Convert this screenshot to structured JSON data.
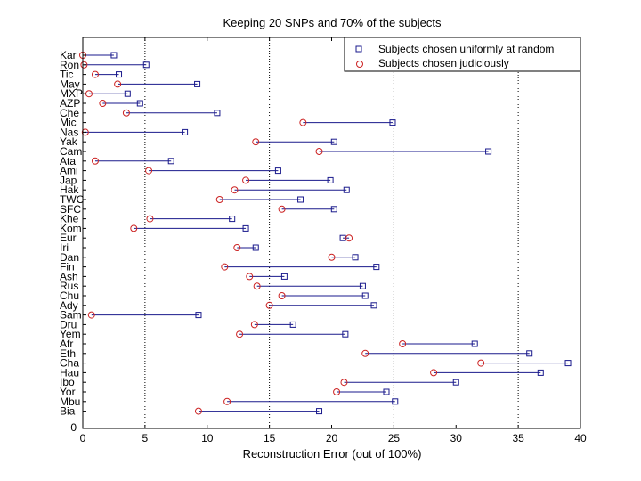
{
  "chart_data": {
    "type": "dumbbell",
    "title": "Keeping 20 SNPs and 70% of the subjects",
    "xlabel": "Reconstruction Error (out of 100%)",
    "ylabel": "",
    "xlim": [
      0,
      40
    ],
    "xticks": [
      "0",
      "5",
      "10",
      "15",
      "20",
      "25",
      "30",
      "35",
      "40"
    ],
    "y_zero_label": "0",
    "reference_lines": [
      5,
      15,
      25,
      35
    ],
    "categories": [
      "Kar",
      "Ron",
      "Tic",
      "May",
      "MXP",
      "AZP",
      "Che",
      "Mic",
      "Nas",
      "Yak",
      "Cam",
      "Ata",
      "Ami",
      "Jap",
      "Hak",
      "TWC",
      "SFC",
      "Khe",
      "Kom",
      "Eur",
      "Iri",
      "Dan",
      "Fin",
      "Ash",
      "Rus",
      "Chu",
      "Ady",
      "Sam",
      "Dru",
      "Yem",
      "Afr",
      "Eth",
      "Cha",
      "Hau",
      "Ibo",
      "Yor",
      "Mbu",
      "Bia"
    ],
    "series": [
      {
        "name": "Subjects chosen uniformly at random",
        "marker": "square",
        "color": "#1a1a8c",
        "values": [
          2.5,
          5.1,
          2.9,
          9.2,
          3.6,
          4.6,
          10.8,
          24.9,
          8.2,
          20.2,
          32.6,
          7.1,
          15.7,
          19.9,
          21.2,
          17.5,
          20.2,
          12.0,
          13.1,
          20.9,
          13.9,
          21.9,
          23.6,
          16.2,
          22.5,
          22.7,
          23.4,
          9.3,
          16.9,
          21.1,
          31.5,
          35.9,
          39.0,
          36.8,
          30.0,
          24.4,
          25.1,
          19.0
        ]
      },
      {
        "name": "Subjects chosen judiciously",
        "marker": "circle",
        "color": "#cc2222",
        "values": [
          0.0,
          0.1,
          1.0,
          2.8,
          0.5,
          1.6,
          3.5,
          17.7,
          0.2,
          13.9,
          19.0,
          1.0,
          5.3,
          13.1,
          12.2,
          11.0,
          16.0,
          5.4,
          4.1,
          21.4,
          12.4,
          20.0,
          11.4,
          13.4,
          14.0,
          16.0,
          15.0,
          0.7,
          13.8,
          12.6,
          25.7,
          22.7,
          32.0,
          28.2,
          21.0,
          20.4,
          11.6,
          9.3
        ]
      }
    ],
    "legend_position": "top-right"
  }
}
